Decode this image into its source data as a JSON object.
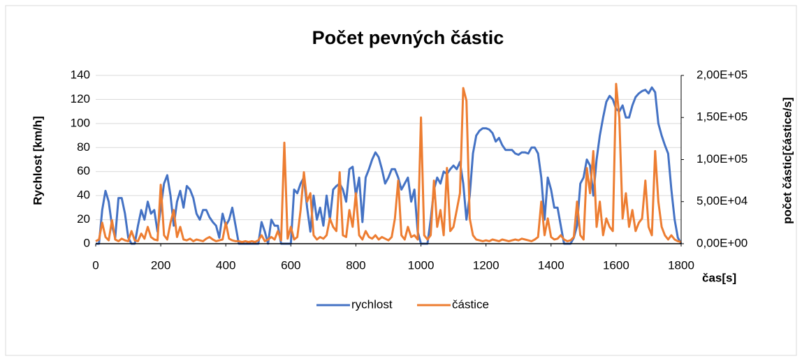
{
  "chart_data": {
    "type": "line",
    "title": "Počet pevných částic",
    "x_label": "čas[s]",
    "y_label": "Rychlost [km/h]",
    "y2_label": "počet částic[částice/s]",
    "x": [
      0,
      10,
      20,
      30,
      40,
      50,
      60,
      70,
      80,
      90,
      100,
      110,
      120,
      130,
      140,
      150,
      160,
      170,
      180,
      190,
      200,
      210,
      220,
      230,
      240,
      250,
      260,
      270,
      280,
      290,
      300,
      310,
      320,
      330,
      340,
      350,
      360,
      370,
      380,
      390,
      400,
      410,
      420,
      430,
      440,
      450,
      460,
      470,
      480,
      490,
      500,
      510,
      520,
      530,
      540,
      550,
      560,
      570,
      580,
      590,
      600,
      610,
      620,
      630,
      640,
      650,
      660,
      670,
      680,
      690,
      700,
      710,
      720,
      730,
      740,
      750,
      760,
      770,
      780,
      790,
      800,
      810,
      820,
      830,
      840,
      850,
      860,
      870,
      880,
      890,
      900,
      910,
      920,
      930,
      940,
      950,
      960,
      970,
      980,
      990,
      1000,
      1010,
      1020,
      1030,
      1040,
      1050,
      1060,
      1070,
      1080,
      1090,
      1100,
      1110,
      1120,
      1130,
      1140,
      1150,
      1160,
      1170,
      1180,
      1190,
      1200,
      1210,
      1220,
      1230,
      1240,
      1250,
      1260,
      1270,
      1280,
      1290,
      1300,
      1310,
      1320,
      1330,
      1340,
      1350,
      1360,
      1370,
      1380,
      1390,
      1400,
      1410,
      1420,
      1430,
      1440,
      1450,
      1460,
      1470,
      1480,
      1490,
      1500,
      1510,
      1520,
      1530,
      1540,
      1550,
      1560,
      1570,
      1580,
      1590,
      1600,
      1610,
      1620,
      1630,
      1640,
      1650,
      1660,
      1670,
      1680,
      1690,
      1700,
      1710,
      1720,
      1730,
      1740,
      1750,
      1760,
      1770,
      1780,
      1790,
      1800
    ],
    "series": [
      {
        "name": "rychlost",
        "color": "#4472c4",
        "axis": "y",
        "values": [
          0,
          0,
          28,
          44,
          35,
          15,
          5,
          38,
          38,
          25,
          5,
          0,
          0,
          15,
          28,
          20,
          35,
          25,
          28,
          10,
          30,
          50,
          57,
          40,
          15,
          35,
          44,
          30,
          48,
          45,
          38,
          25,
          20,
          28,
          28,
          22,
          18,
          15,
          5,
          25,
          15,
          20,
          30,
          15,
          0,
          0,
          0,
          0,
          0,
          0,
          0,
          18,
          10,
          0,
          20,
          15,
          15,
          0,
          0,
          0,
          0,
          45,
          42,
          50,
          55,
          30,
          10,
          40,
          20,
          30,
          15,
          40,
          20,
          45,
          48,
          50,
          45,
          35,
          62,
          64,
          40,
          55,
          18,
          55,
          62,
          70,
          76,
          72,
          62,
          50,
          55,
          62,
          62,
          55,
          45,
          50,
          55,
          35,
          45,
          10,
          0,
          0,
          0,
          20,
          45,
          55,
          50,
          60,
          58,
          62,
          65,
          62,
          68,
          50,
          20,
          40,
          75,
          90,
          94,
          96,
          96,
          95,
          92,
          85,
          88,
          82,
          78,
          78,
          78,
          75,
          74,
          76,
          76,
          75,
          80,
          80,
          75,
          55,
          20,
          55,
          45,
          30,
          30,
          15,
          0,
          0,
          0,
          5,
          15,
          50,
          55,
          70,
          65,
          40,
          70,
          90,
          105,
          118,
          123,
          120,
          112,
          110,
          115,
          105,
          105,
          115,
          122,
          125,
          127,
          128,
          125,
          130,
          126,
          100,
          90,
          82,
          75,
          45,
          20,
          5,
          0
        ]
      },
      {
        "name": "částice",
        "color": "#ed7d31",
        "axis": "y2",
        "values": [
          3000,
          5000,
          25000,
          8000,
          4000,
          28000,
          5000,
          3000,
          6000,
          4000,
          3000,
          15000,
          4000,
          3000,
          12000,
          6000,
          20000,
          8000,
          5000,
          4000,
          70000,
          10000,
          5000,
          25000,
          40000,
          8000,
          20000,
          5000,
          4000,
          6000,
          3000,
          5000,
          4000,
          3000,
          6000,
          8000,
          5000,
          3000,
          4000,
          5000,
          25000,
          6000,
          4000,
          3000,
          3000,
          2000,
          3000,
          2000,
          3000,
          2000,
          4000,
          10000,
          3000,
          5000,
          8000,
          5000,
          15000,
          4000,
          120000,
          6000,
          20000,
          5000,
          8000,
          40000,
          85000,
          50000,
          60000,
          10000,
          5000,
          8000,
          6000,
          10000,
          30000,
          20000,
          15000,
          85000,
          10000,
          8000,
          40000,
          20000,
          60000,
          10000,
          5000,
          15000,
          8000,
          6000,
          10000,
          5000,
          8000,
          6000,
          4000,
          8000,
          30000,
          75000,
          10000,
          5000,
          20000,
          8000,
          10000,
          5000,
          150000,
          10000,
          5000,
          10000,
          75000,
          20000,
          40000,
          10000,
          90000,
          15000,
          20000,
          40000,
          60000,
          185000,
          170000,
          30000,
          10000,
          5000,
          4000,
          3000,
          4000,
          3000,
          5000,
          4000,
          3000,
          5000,
          4000,
          3000,
          4000,
          5000,
          4000,
          6000,
          5000,
          4000,
          3000,
          5000,
          8000,
          50000,
          10000,
          30000,
          8000,
          5000,
          6000,
          10000,
          5000,
          3000,
          4000,
          8000,
          50000,
          10000,
          5000,
          90000,
          60000,
          110000,
          20000,
          50000,
          10000,
          30000,
          20000,
          15000,
          190000,
          150000,
          30000,
          60000,
          20000,
          40000,
          15000,
          25000,
          30000,
          75000,
          20000,
          10000,
          110000,
          50000,
          20000,
          10000,
          5000,
          10000,
          5000,
          3000,
          2000
        ]
      }
    ],
    "xlim": [
      0,
      1800
    ],
    "xticks": [
      0,
      200,
      400,
      600,
      800,
      1000,
      1200,
      1400,
      1600,
      1800
    ],
    "ylim": [
      0,
      140
    ],
    "yticks": [
      0,
      20,
      40,
      60,
      80,
      100,
      120,
      140
    ],
    "y2lim": [
      0,
      200000
    ],
    "y2ticks": [
      {
        "value": 0,
        "label": "0,00E+00"
      },
      {
        "value": 50000,
        "label": "5,00E+04"
      },
      {
        "value": 100000,
        "label": "1,00E+05"
      },
      {
        "value": 150000,
        "label": "1,50E+05"
      },
      {
        "value": 200000,
        "label": "2,00E+05"
      }
    ],
    "grid": true,
    "legend": "bottom"
  }
}
